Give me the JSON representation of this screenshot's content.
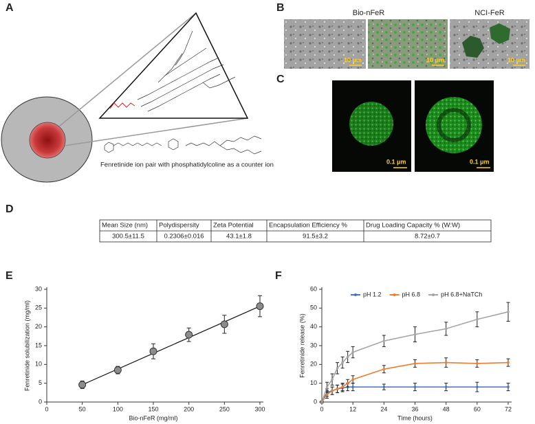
{
  "panels": {
    "a": "A",
    "b": "B",
    "c": "C",
    "d": "D",
    "e": "E",
    "f": "F"
  },
  "panel_a": {
    "caption": "Fenretinide ion pair with phosphatidylcoline as a counter ion"
  },
  "panel_b": {
    "labels": [
      "Bio-nFeR",
      "NCI-FeR"
    ],
    "scale": "10 μm"
  },
  "panel_c": {
    "scale": "0.1 μm"
  },
  "table": {
    "header": [
      "Mean Size  (nm)",
      "Polydispersity",
      "Zeta Potential",
      "Encapsulation Efficiency %",
      "Drug Loading Capacity % (W:W)"
    ],
    "rows": [
      [
        "300.5±11.5",
        "0.2306±0.016",
        "43.1±1.8",
        "91.5±3.2",
        "8.72±0.7"
      ]
    ]
  },
  "chart_data": [
    {
      "type": "scatter",
      "trendline": true,
      "x_label": "Bio-nFeR (mg/ml)",
      "y_label": "Fenretinide solubilization (mg/ml)",
      "x": [
        50,
        100,
        150,
        200,
        250,
        300
      ],
      "values": [
        4.6,
        8.5,
        13.5,
        17.9,
        20.7,
        25.5
      ],
      "errors": [
        1.0,
        1.0,
        2.0,
        1.8,
        2.4,
        2.8
      ],
      "color": "#8c8c8c",
      "xlim": [
        0,
        300
      ],
      "ylim": [
        0,
        30
      ],
      "xticks": [
        0,
        50,
        100,
        150,
        200,
        250,
        300
      ],
      "yticks": [
        0,
        5,
        10,
        15,
        20,
        25,
        30
      ]
    },
    {
      "type": "line",
      "x_label": "Time (hours)",
      "y_label": "Fenretinide release (%)",
      "legend": "top",
      "x": [
        0,
        2,
        4,
        6,
        8,
        10,
        12,
        24,
        36,
        48,
        60,
        72
      ],
      "series": [
        {
          "name": "pH 1.2",
          "color": "#4472c4",
          "values": [
            0,
            5,
            6,
            7,
            7.5,
            8,
            8,
            8,
            8,
            8,
            8,
            8
          ],
          "errors": [
            0.5,
            2,
            2,
            2,
            2,
            2,
            2,
            1.5,
            2,
            2,
            2.5,
            2
          ]
        },
        {
          "name": "pH 6.8",
          "color": "#ed7d31",
          "values": [
            0,
            4,
            6,
            7,
            8,
            10,
            12,
            17.5,
            20.5,
            21,
            20.5,
            21
          ],
          "errors": [
            0.5,
            2,
            2,
            2,
            2,
            2,
            2,
            2,
            2,
            2.5,
            2,
            2
          ]
        },
        {
          "name": "pH 6.8+NaTCh",
          "color": "#a5a5a5",
          "values": [
            0,
            8,
            12,
            18,
            21,
            24,
            26.5,
            32.5,
            36,
            39,
            44,
            48
          ],
          "errors": [
            0.5,
            2.5,
            3,
            3,
            3,
            3,
            3,
            3,
            4,
            3.5,
            4,
            5
          ]
        }
      ],
      "xlim": [
        0,
        72
      ],
      "ylim": [
        0,
        60
      ],
      "xticks": [
        0,
        12,
        24,
        36,
        48,
        60,
        72
      ],
      "yticks": [
        0,
        10,
        20,
        30,
        40,
        50,
        60
      ]
    }
  ]
}
